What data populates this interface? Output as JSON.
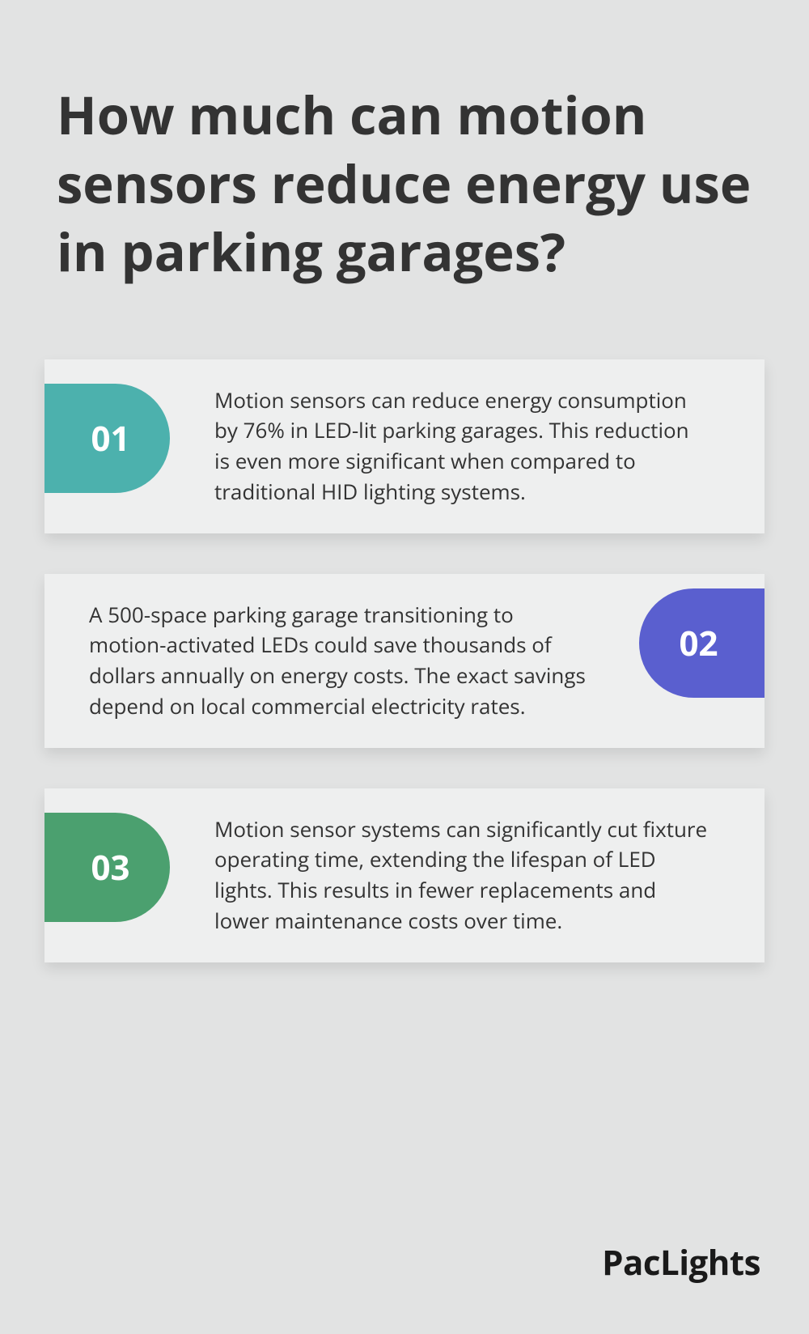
{
  "type": "infographic",
  "background_color": "#e2e3e3",
  "title": {
    "text": "How much can motion sensors reduce energy use in parking garages?",
    "color": "#333333",
    "fontsize": 65,
    "fontweight": 700
  },
  "cards": [
    {
      "number": "01",
      "badge_position": "left",
      "badge_color": "#4cb1ad",
      "text": "Motion sensors can reduce energy consumption by 76% in LED-lit parking garages. This reduction is even more significant when compared to traditional HID lighting systems."
    },
    {
      "number": "02",
      "badge_position": "right",
      "badge_color": "#5a5fcf",
      "text": "A 500-space parking garage transitioning to motion-activated LEDs could save thousands of dollars annually on energy costs. The exact savings depend on local commercial electricity rates."
    },
    {
      "number": "03",
      "badge_position": "left",
      "badge_color": "#4ba06f",
      "text": "Motion sensor systems can significantly cut fixture operating time, extending the lifespan of LED lights. This results in fewer replacements and lower maintenance costs over time."
    }
  ],
  "card_style": {
    "background_color": "#eeefef",
    "text_color": "#333333",
    "text_fontsize": 26,
    "badge_text_color": "#ffffff",
    "badge_fontsize": 42,
    "badge_width": 155,
    "badge_height": 135,
    "badge_radius": 70
  },
  "brand": {
    "text": "PacLights",
    "color": "#1a1a1a",
    "fontsize": 42
  }
}
